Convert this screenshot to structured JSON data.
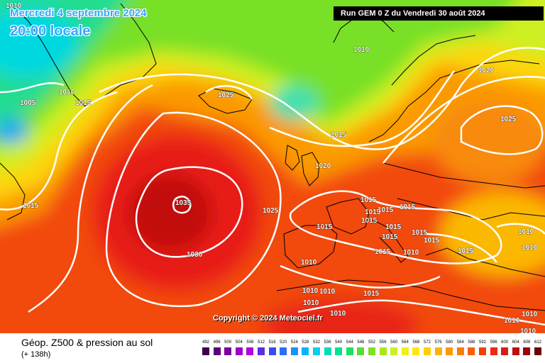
{
  "header": {
    "date": "Mercredi 4 septembre 2024",
    "local_time": "20:00 locale",
    "run": "Run GEM 0 Z du Vendredi 30 août 2024"
  },
  "map": {
    "copyright": "Copyright © 2024 Meteociel.fr",
    "high_pressure_label": "1035",
    "isobar_labels": [
      "1010",
      "1020",
      "1005",
      "1010",
      "1015",
      "1015",
      "1025",
      "1010",
      "1020",
      "1015",
      "1025",
      "1020",
      "1015",
      "1025",
      "1015",
      "1015",
      "1015",
      "1015",
      "1015",
      "1015",
      "1015",
      "1015",
      "1015",
      "1015",
      "1030",
      "1010",
      "1010",
      "1010",
      "1010",
      "1010",
      "1015",
      "1010",
      "1010",
      "1010",
      "1015",
      "1010",
      "1010",
      "1010"
    ],
    "colors": {
      "contour_lines": "#ffffff",
      "land_outline": "#000000",
      "run_box_background": "#000000",
      "title_text": "#3aa6ff"
    }
  },
  "footer": {
    "product_title": "Géop. Z500 & pression au sol",
    "lead_time": "(+ 138h)"
  },
  "legend": {
    "labels": [
      "492",
      "496",
      "500",
      "504",
      "508",
      "512",
      "516",
      "520",
      "524",
      "528",
      "532",
      "536",
      "540",
      "544",
      "548",
      "552",
      "556",
      "560",
      "564",
      "568",
      "572",
      "576",
      "580",
      "584",
      "588",
      "592",
      "596",
      "600",
      "604",
      "608",
      "612"
    ],
    "colors": [
      "#3c0050",
      "#5a0078",
      "#7a009e",
      "#9a00c6",
      "#b400dc",
      "#5a2ce6",
      "#3a4cf0",
      "#2a6ef6",
      "#1a90fa",
      "#0ab4fa",
      "#00d0ee",
      "#00dcc0",
      "#00e090",
      "#20e060",
      "#50e030",
      "#80e020",
      "#a8e818",
      "#ccf020",
      "#eef018",
      "#fce810",
      "#fcd000",
      "#fcb400",
      "#fc9800",
      "#fc7c00",
      "#f86000",
      "#f44000",
      "#ec2a10",
      "#d81c14",
      "#bc1010",
      "#980808",
      "#700000"
    ]
  }
}
